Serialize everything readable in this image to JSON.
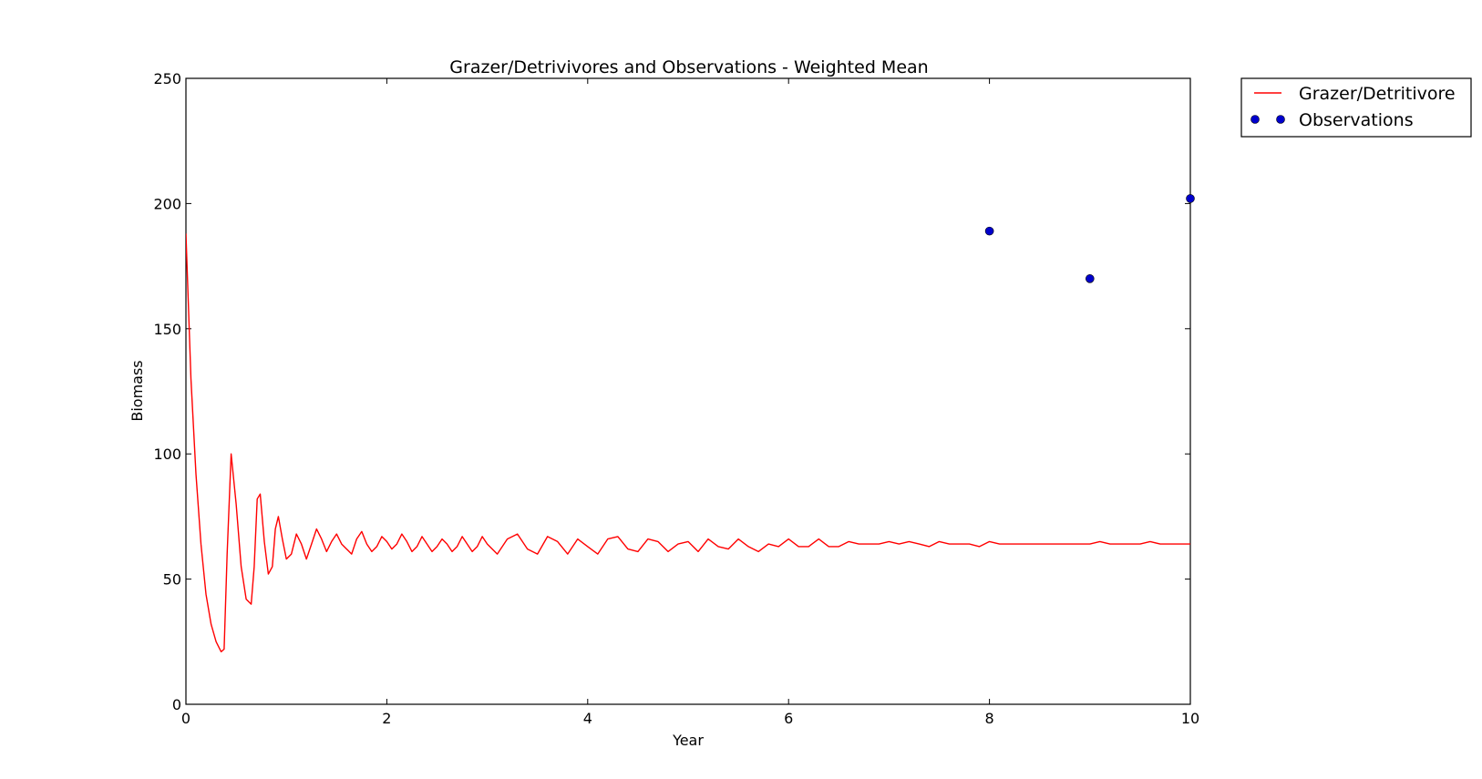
{
  "chart_data": {
    "type": "line",
    "title": "Grazer/Detrivivores and Observations - Weighted Mean",
    "xlabel": "Year",
    "ylabel": "Biomass",
    "xlim": [
      0,
      10
    ],
    "ylim": [
      0,
      250
    ],
    "xticks": [
      0,
      2,
      4,
      6,
      8,
      10
    ],
    "yticks": [
      0,
      50,
      100,
      150,
      200,
      250
    ],
    "grid": false,
    "legend_position": "outside-top-right",
    "series": [
      {
        "name": "Grazer/Detritivore",
        "kind": "line",
        "color": "#ff0000",
        "x": [
          0,
          0.05,
          0.1,
          0.15,
          0.2,
          0.25,
          0.3,
          0.35,
          0.38,
          0.41,
          0.45,
          0.5,
          0.55,
          0.6,
          0.65,
          0.68,
          0.71,
          0.74,
          0.78,
          0.82,
          0.86,
          0.89,
          0.92,
          0.96,
          1.0,
          1.05,
          1.1,
          1.15,
          1.2,
          1.25,
          1.3,
          1.35,
          1.4,
          1.45,
          1.5,
          1.55,
          1.6,
          1.65,
          1.7,
          1.75,
          1.8,
          1.85,
          1.9,
          1.95,
          2.0,
          2.05,
          2.1,
          2.15,
          2.2,
          2.25,
          2.3,
          2.35,
          2.4,
          2.45,
          2.5,
          2.55,
          2.6,
          2.65,
          2.7,
          2.75,
          2.8,
          2.85,
          2.9,
          2.95,
          3.0,
          3.1,
          3.2,
          3.3,
          3.4,
          3.5,
          3.6,
          3.7,
          3.8,
          3.9,
          4.0,
          4.1,
          4.2,
          4.3,
          4.4,
          4.5,
          4.6,
          4.7,
          4.8,
          4.9,
          5.0,
          5.1,
          5.2,
          5.3,
          5.4,
          5.5,
          5.6,
          5.7,
          5.8,
          5.9,
          6.0,
          6.1,
          6.2,
          6.3,
          6.4,
          6.5,
          6.6,
          6.7,
          6.8,
          6.9,
          7.0,
          7.1,
          7.2,
          7.3,
          7.4,
          7.5,
          7.6,
          7.7,
          7.8,
          7.9,
          8.0,
          8.1,
          8.2,
          8.3,
          8.4,
          8.5,
          8.6,
          8.7,
          8.8,
          8.9,
          9.0,
          9.1,
          9.2,
          9.3,
          9.4,
          9.5,
          9.6,
          9.7,
          9.8,
          9.9,
          10.0
        ],
        "y": [
          188,
          130,
          92,
          64,
          44,
          32,
          25,
          21,
          22,
          60,
          100,
          80,
          55,
          42,
          40,
          55,
          82,
          84,
          65,
          52,
          55,
          70,
          75,
          66,
          58,
          60,
          68,
          64,
          58,
          64,
          70,
          66,
          61,
          65,
          68,
          64,
          62,
          60,
          66,
          69,
          64,
          61,
          63,
          67,
          65,
          62,
          64,
          68,
          65,
          61,
          63,
          67,
          64,
          61,
          63,
          66,
          64,
          61,
          63,
          67,
          64,
          61,
          63,
          67,
          64,
          60,
          66,
          68,
          62,
          60,
          67,
          65,
          60,
          66,
          63,
          60,
          66,
          67,
          62,
          61,
          66,
          65,
          61,
          64,
          65,
          61,
          66,
          63,
          62,
          66,
          63,
          61,
          64,
          63,
          66,
          63,
          63,
          66,
          63,
          63,
          65,
          64,
          64,
          64,
          65,
          64,
          65,
          64,
          63,
          65,
          64,
          64,
          64,
          63,
          65,
          64,
          64,
          64,
          64,
          64,
          64,
          64,
          64,
          64,
          64,
          65,
          64,
          64,
          64,
          64,
          65,
          64,
          64,
          64,
          64
        ]
      },
      {
        "name": "Observations",
        "kind": "scatter",
        "color": "#0000cc",
        "x": [
          8,
          9,
          10
        ],
        "y": [
          189,
          170,
          202
        ]
      }
    ]
  }
}
